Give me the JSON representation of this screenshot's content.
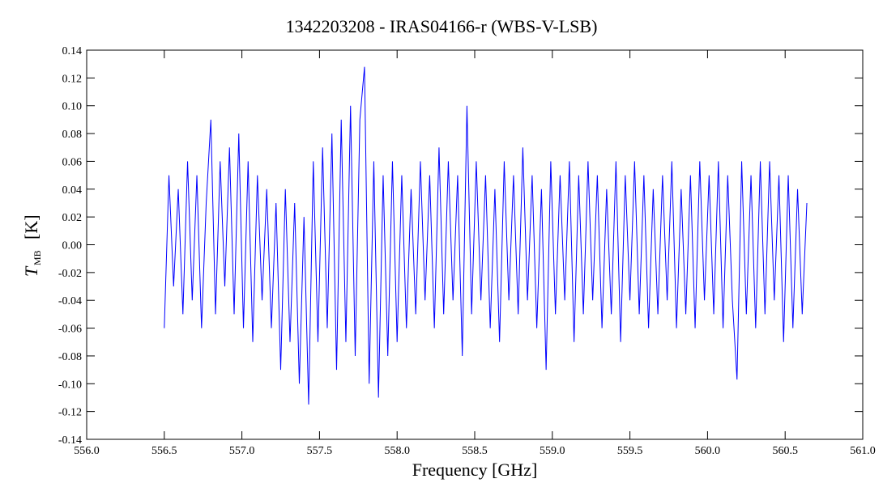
{
  "chart_data": {
    "type": "line",
    "title": "1342203208 - IRAS04166-r (WBS-V-LSB)",
    "xlabel": "Frequency [GHz]",
    "ylabel_symbol": "T",
    "ylabel_subscript": "MB",
    "ylabel_unit": "[K]",
    "xlim": [
      556.0,
      561.0
    ],
    "xticks": [
      {
        "value": 556.0,
        "label": "556.0"
      },
      556.5,
      {
        "value": 557.0,
        "label": "557.0"
      },
      557.5,
      {
        "value": 558.0,
        "label": "558.0"
      },
      558.5,
      {
        "value": 559.0,
        "label": "559.0"
      },
      559.5,
      {
        "value": 560.0,
        "label": "560.0"
      },
      560.5,
      {
        "value": 561.0,
        "label": "561.0"
      }
    ],
    "ylim": [
      -0.14,
      0.14
    ],
    "yticks": [
      -0.14,
      -0.12,
      {
        "value": -0.1,
        "label": "-0.10"
      },
      -0.08,
      -0.06,
      -0.04,
      -0.02,
      {
        "value": 0,
        "label": "0.00"
      },
      0.02,
      0.04,
      0.06,
      0.08,
      {
        "value": 0.1,
        "label": "0.10"
      },
      0.12,
      0.14
    ],
    "series": [
      {
        "color": "#0000ff",
        "x": [
          556.5,
          556.53,
          556.56,
          556.59,
          556.62,
          556.65,
          556.68,
          556.71,
          556.74,
          556.77,
          556.8,
          556.83,
          556.86,
          556.89,
          556.92,
          556.95,
          556.98,
          557.01,
          557.04,
          557.07,
          557.1,
          557.13,
          557.16,
          557.19,
          557.22,
          557.25,
          557.28,
          557.31,
          557.34,
          557.37,
          557.4,
          557.43,
          557.46,
          557.49,
          557.52,
          557.55,
          557.58,
          557.61,
          557.64,
          557.67,
          557.7,
          557.73,
          557.76,
          557.79,
          557.82,
          557.85,
          557.88,
          557.91,
          557.94,
          557.97,
          558.0,
          558.03,
          558.06,
          558.09,
          558.12,
          558.15,
          558.18,
          558.21,
          558.24,
          558.27,
          558.3,
          558.33,
          558.36,
          558.39,
          558.42,
          558.45,
          558.48,
          558.51,
          558.54,
          558.57,
          558.6,
          558.63,
          558.66,
          558.69,
          558.72,
          558.75,
          558.78,
          558.81,
          558.84,
          558.87,
          558.9,
          558.93,
          558.96,
          558.99,
          559.02,
          559.05,
          559.08,
          559.11,
          559.14,
          559.17,
          559.2,
          559.23,
          559.26,
          559.29,
          559.32,
          559.35,
          559.38,
          559.41,
          559.44,
          559.47,
          559.5,
          559.53,
          559.56,
          559.59,
          559.62,
          559.65,
          559.68,
          559.71,
          559.74,
          559.77,
          559.8,
          559.83,
          559.86,
          559.89,
          559.92,
          559.95,
          559.98,
          560.01,
          560.04,
          560.07,
          560.1,
          560.13,
          560.16,
          560.19,
          560.22,
          560.25,
          560.28,
          560.31,
          560.34,
          560.37,
          560.4,
          560.43,
          560.46,
          560.49,
          560.52,
          560.55,
          560.58,
          560.61,
          560.64
        ],
        "values": [
          -0.06,
          0.05,
          -0.03,
          0.04,
          -0.05,
          0.06,
          -0.04,
          0.05,
          -0.06,
          0.03,
          0.09,
          -0.05,
          0.06,
          -0.03,
          0.07,
          -0.05,
          0.08,
          -0.06,
          0.06,
          -0.07,
          0.05,
          -0.04,
          0.04,
          -0.06,
          0.03,
          -0.09,
          0.04,
          -0.07,
          0.03,
          -0.1,
          0.02,
          -0.115,
          0.06,
          -0.07,
          0.07,
          -0.06,
          0.08,
          -0.09,
          0.09,
          -0.07,
          0.1,
          -0.08,
          0.09,
          0.128,
          -0.1,
          0.06,
          -0.11,
          0.05,
          -0.08,
          0.06,
          -0.07,
          0.05,
          -0.06,
          0.04,
          -0.05,
          0.06,
          -0.04,
          0.05,
          -0.06,
          0.07,
          -0.05,
          0.06,
          -0.04,
          0.05,
          -0.08,
          0.1,
          -0.05,
          0.06,
          -0.04,
          0.05,
          -0.06,
          0.04,
          -0.07,
          0.06,
          -0.04,
          0.05,
          -0.05,
          0.07,
          -0.04,
          0.05,
          -0.06,
          0.04,
          -0.09,
          0.06,
          -0.05,
          0.05,
          -0.04,
          0.06,
          -0.07,
          0.05,
          -0.05,
          0.06,
          -0.04,
          0.05,
          -0.06,
          0.04,
          -0.05,
          0.06,
          -0.07,
          0.05,
          -0.04,
          0.06,
          -0.05,
          0.05,
          -0.06,
          0.04,
          -0.05,
          0.05,
          -0.04,
          0.06,
          -0.06,
          0.04,
          -0.05,
          0.05,
          -0.06,
          0.06,
          -0.04,
          0.05,
          -0.05,
          0.06,
          -0.06,
          0.05,
          -0.04,
          -0.097,
          0.06,
          -0.05,
          0.05,
          -0.06,
          0.06,
          -0.05,
          0.06,
          -0.04,
          0.05,
          -0.07,
          0.05,
          -0.06,
          0.04,
          -0.05,
          0.03
        ]
      }
    ]
  }
}
